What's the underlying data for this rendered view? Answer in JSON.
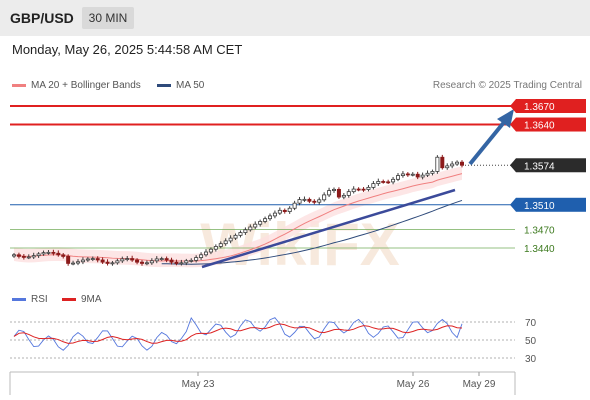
{
  "header": {
    "symbol": "GBP/USD",
    "timeframe": "30 MIN"
  },
  "datetime": "Monday, May 26, 2025 5:44:58 AM CET",
  "legend": [
    {
      "label": "MA 20 + Bollinger Bands",
      "color": "#f08080"
    },
    {
      "label": "MA 50",
      "color": "#2e4a7a"
    }
  ],
  "credit": "Research © 2025 Trading Central",
  "watermark": "WikiFX",
  "colors": {
    "resistance": "#e02020",
    "support_line": "#1f5fae",
    "support_green": "#6aa84f",
    "trend": "#3b4a9a",
    "arrow": "#3465a4",
    "last": "#2b2b2b",
    "rsi": "#5577dd",
    "ma9": "#dd2222",
    "bb_fill": "#fde0e0"
  },
  "chart_data": {
    "type": "candlestick",
    "symbol": "GBP/USD",
    "timeframe": "30 MIN",
    "last_price": 1.3574,
    "levels": [
      {
        "value": 1.367,
        "label": "1.3670",
        "kind": "resistance"
      },
      {
        "value": 1.364,
        "label": "1.3640",
        "kind": "resistance"
      },
      {
        "value": 1.351,
        "label": "1.3510",
        "kind": "pivot"
      },
      {
        "value": 1.347,
        "label": "1.3470",
        "kind": "support"
      },
      {
        "value": 1.344,
        "label": "1.3440",
        "kind": "support"
      }
    ],
    "last_label": "1.3574",
    "price_range": [
      1.339,
      1.37
    ],
    "series": [
      {
        "name": "MA 20 + Bollinger Bands"
      },
      {
        "name": "MA 50"
      }
    ],
    "x_labels": [
      "May 23",
      "May 26",
      "May 29"
    ],
    "rsi": {
      "series_names": [
        "RSI",
        "9MA"
      ],
      "levels": [
        70,
        50,
        30
      ],
      "level_labels": [
        "70",
        "50",
        "30"
      ]
    }
  }
}
